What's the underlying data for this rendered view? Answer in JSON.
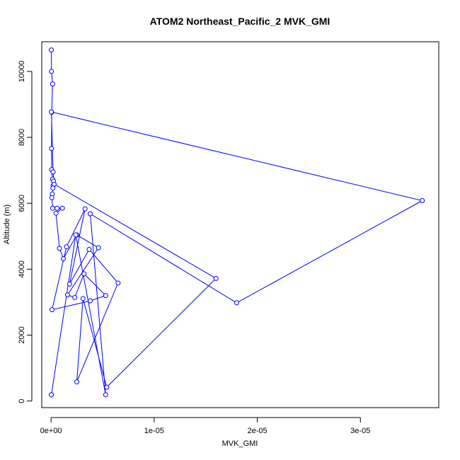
{
  "chart_data": {
    "type": "line",
    "title": "ATOM2 Northeast_Pacific_2 MVK_GMI",
    "xlabel": "MVK_GMI",
    "ylabel": "Altitude (m)",
    "xlim": [
      -9e-07,
      3.76e-05
    ],
    "ylim": [
      -200,
      10900
    ],
    "x_ticks": [
      0,
      1e-05,
      2e-05,
      3e-05
    ],
    "x_tick_labels": [
      "0e+00",
      "1e-05",
      "2e-05",
      "3e-05"
    ],
    "y_ticks": [
      0,
      2000,
      4000,
      6000,
      8000,
      10000
    ],
    "y_tick_labels": [
      "0",
      "2000",
      "4000",
      "6000",
      "8000",
      "10000"
    ],
    "grid": false,
    "legend": "none",
    "series": [
      {
        "color": "#0000ff",
        "marker": "open-circle",
        "x": [
          3e-08,
          4e-08,
          1.5e-07,
          6e-08,
          5e-08,
          6e-08,
          1.5e-07,
          2.4e-07,
          2.1e-07,
          1.8e-07,
          1.2e-07,
          8e-08,
          1.6e-07,
          5.8e-07,
          1.1e-06,
          4.8e-07,
          8.2e-07,
          1.2e-06,
          2.5e-06,
          4.6e-06,
          1.6e-06,
          2.3e-06,
          3.2e-06,
          5.3e-06,
          3.8e-06,
          9.5e-08,
          1.5e-06,
          3.3e-06,
          1.8e-06,
          3.7e-06,
          6.5e-06,
          2.5e-06,
          3.1e-06,
          5.4e-06,
          1.6e-05,
          3e-07,
          2e-07,
          3e-08,
          3.6e-05,
          1.8e-05,
          3.8e-06,
          5.3e-06,
          2.4e-06,
          3.4e-08,
          3e-08
        ],
        "y": [
          10650,
          10000,
          9620,
          8760,
          7660,
          7020,
          6730,
          6670,
          6540,
          6460,
          6280,
          6170,
          5850,
          5850,
          5850,
          5700,
          4630,
          4320,
          5040,
          4650,
          3220,
          3140,
          3860,
          3200,
          3040,
          2770,
          4680,
          5830,
          3550,
          4600,
          3580,
          580,
          3110,
          420,
          3720,
          6580,
          6950,
          8770,
          6080,
          2980,
          5680,
          190,
          5040,
          190,
          190
        ]
      }
    ]
  }
}
